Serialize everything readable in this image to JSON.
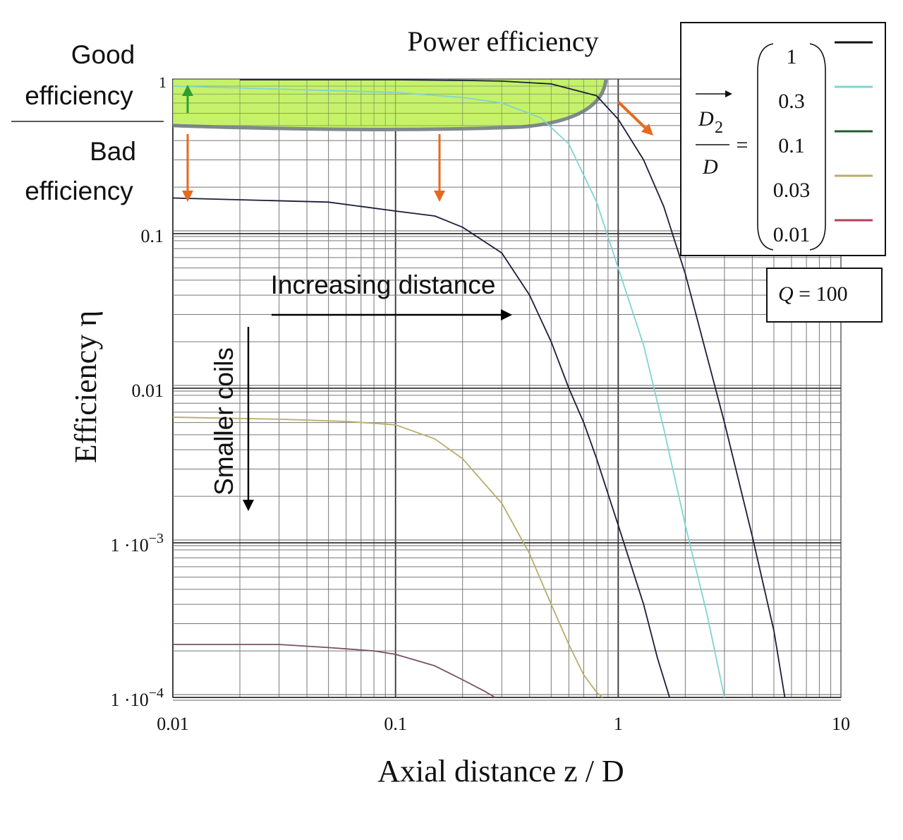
{
  "chart_data": {
    "type": "line",
    "title": "Power efficiency",
    "xlabel": "Axial distance z / D",
    "ylabel": "Efficiency η",
    "xscale": "log",
    "yscale": "log",
    "xlim": [
      0.01,
      10
    ],
    "ylim": [
      0.0001,
      1
    ],
    "grid": true,
    "x_ticks": [
      "0.01",
      "0.1",
      "1",
      "10"
    ],
    "y_ticks": [
      {
        "base": "1",
        "exp": ""
      },
      {
        "base": "0.1",
        "exp": ""
      },
      {
        "base": "0.01",
        "exp": ""
      },
      {
        "base": "1 ·10",
        "exp": "−3"
      },
      {
        "base": "1 ·10",
        "exp": "−4"
      }
    ],
    "legend_position": "top-right",
    "legend": {
      "variable_numerator": "D",
      "variable_subscript": "2",
      "variable_denominator": "D",
      "equals": "=",
      "entries": [
        {
          "label": "1",
          "color": "#111111"
        },
        {
          "label": "0.3",
          "color": "#7fd4d4"
        },
        {
          "label": "0.1",
          "color": "#1f5f2f"
        },
        {
          "label": "0.03",
          "color": "#b8ad6a"
        },
        {
          "label": "0.01",
          "color": "#b0405a"
        }
      ]
    },
    "parameter_box": {
      "symbol": "Q",
      "text": " = 100"
    },
    "series": [
      {
        "name": "1",
        "color": "#1c1c3a",
        "x": [
          0.02,
          0.1,
          0.2,
          0.3,
          0.5,
          0.8,
          1.0,
          1.3,
          1.6,
          2.0,
          3.0,
          4.0,
          5.0,
          5.6
        ],
        "y": [
          0.99,
          0.99,
          0.98,
          0.97,
          0.93,
          0.78,
          0.55,
          0.3,
          0.15,
          0.055,
          0.006,
          0.0011,
          0.00027,
          0.0001
        ]
      },
      {
        "name": "0.3",
        "color": "#7fd4d4",
        "x": [
          0.01,
          0.1,
          0.2,
          0.3,
          0.45,
          0.6,
          0.8,
          1.0,
          1.3,
          1.6,
          2.0,
          2.5,
          3.0
        ],
        "y": [
          0.9,
          0.82,
          0.76,
          0.7,
          0.56,
          0.38,
          0.16,
          0.06,
          0.019,
          0.0055,
          0.0013,
          0.00035,
          0.0001
        ]
      },
      {
        "name": "0.1",
        "color": "#1c1c3a",
        "x": [
          0.01,
          0.05,
          0.1,
          0.15,
          0.2,
          0.3,
          0.4,
          0.5,
          0.6,
          0.7,
          0.8,
          1.0,
          1.3,
          1.5,
          1.7
        ],
        "y": [
          0.17,
          0.16,
          0.14,
          0.13,
          0.11,
          0.075,
          0.04,
          0.02,
          0.01,
          0.006,
          0.0035,
          0.0013,
          0.0004,
          0.00018,
          0.0001
        ]
      },
      {
        "name": "0.03",
        "color": "#b8ad6a",
        "x": [
          0.01,
          0.03,
          0.06,
          0.1,
          0.15,
          0.2,
          0.3,
          0.4,
          0.5,
          0.6,
          0.7,
          0.8,
          0.85
        ],
        "y": [
          0.0065,
          0.0063,
          0.0061,
          0.0058,
          0.0047,
          0.0035,
          0.0018,
          0.00085,
          0.0004,
          0.00022,
          0.00014,
          0.000108,
          0.0001
        ]
      },
      {
        "name": "0.01",
        "color": "#7a5068",
        "x": [
          0.01,
          0.03,
          0.05,
          0.08,
          0.1,
          0.15,
          0.2,
          0.25,
          0.28
        ],
        "y": [
          0.00022,
          0.00022,
          0.00021,
          0.0002,
          0.00019,
          0.00016,
          0.00013,
          0.00011,
          0.0001
        ]
      }
    ],
    "annotations": {
      "good": "Good efficiency",
      "good_line1": "Good",
      "good_line2": "efficiency",
      "bad_line1": "Bad",
      "bad_line2": "efficiency",
      "increasing_distance": "Increasing distance",
      "smaller_coils": "Smaller coils"
    },
    "highlight": {
      "fill": "#bff15a",
      "stroke": "#7f8a8a"
    },
    "arrow_colors": {
      "green": "#2e9e2e",
      "orange": "#e66a1e",
      "black": "#000000"
    }
  }
}
